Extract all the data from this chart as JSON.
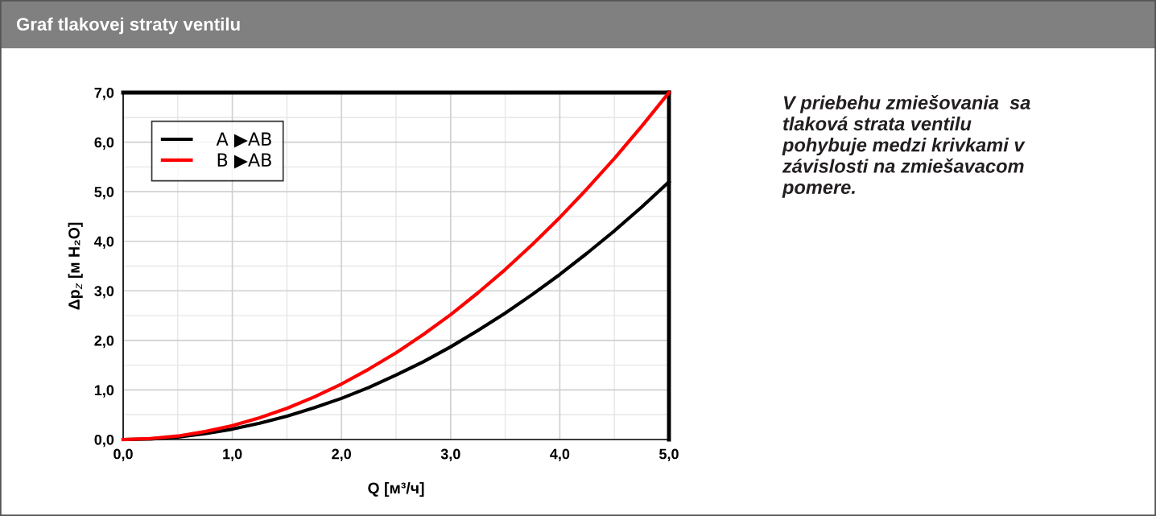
{
  "chart_data": {
    "type": "line",
    "title": "Graf tlakovej straty ventilu",
    "xlabel": "Q [м³/ч]",
    "ylabel": "Δp$_{z}$ [м H₂O]",
    "x": [
      0,
      0.25,
      0.5,
      0.75,
      1,
      1.25,
      1.5,
      1.75,
      2,
      2.25,
      2.5,
      2.75,
      3,
      3.25,
      3.5,
      3.75,
      4,
      4.25,
      4.5,
      4.75,
      5
    ],
    "series": [
      {
        "name": "A ▶AB",
        "color": "#000000",
        "values": [
          0,
          0.01,
          0.05,
          0.12,
          0.21,
          0.33,
          0.47,
          0.64,
          0.83,
          1.05,
          1.3,
          1.57,
          1.87,
          2.2,
          2.55,
          2.93,
          3.33,
          3.76,
          4.21,
          4.69,
          5.2
        ]
      },
      {
        "name": "B ▶AB",
        "color": "#ff0000",
        "values": [
          0,
          0.02,
          0.07,
          0.16,
          0.28,
          0.44,
          0.63,
          0.86,
          1.12,
          1.42,
          1.75,
          2.12,
          2.52,
          2.96,
          3.43,
          3.94,
          4.48,
          5.06,
          5.67,
          6.32,
          7.0
        ]
      }
    ],
    "xlim": [
      0,
      5
    ],
    "ylim": [
      0,
      7
    ],
    "xticks": [
      {
        "value": 0,
        "label": "0,0"
      },
      {
        "value": 1,
        "label": "1,0"
      },
      {
        "value": 2,
        "label": "2,0"
      },
      {
        "value": 3,
        "label": "3,0"
      },
      {
        "value": 4,
        "label": "4,0"
      },
      {
        "value": 5,
        "label": "5,0"
      }
    ],
    "yticks": [
      {
        "value": 0,
        "label": "0,0"
      },
      {
        "value": 1,
        "label": "1,0"
      },
      {
        "value": 2,
        "label": "2,0"
      },
      {
        "value": 3,
        "label": "3,0"
      },
      {
        "value": 4,
        "label": "4,0"
      },
      {
        "value": 5,
        "label": "5,0"
      },
      {
        "value": 6,
        "label": "6,0"
      },
      {
        "value": 7,
        "label": "7,0"
      }
    ],
    "grid": true,
    "legend": "top left",
    "marker": "none",
    "line_style": "solid",
    "annotations": [
      "V priebehu zmiešovania  sa\ntlaková strata ventilu\npohybuje medzi krivkami v\nzávislosti na zmiešavacom\npomere."
    ]
  }
}
